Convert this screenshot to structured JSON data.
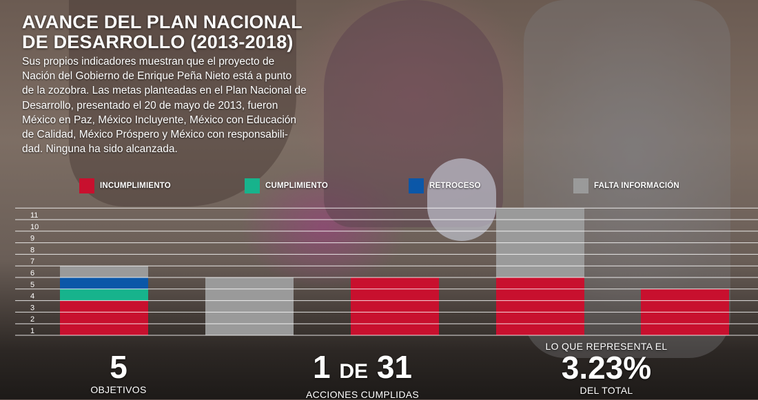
{
  "header": {
    "title_line1": "AVANCE DEL PLAN NACIONAL",
    "title_line2": "DE DESARROLLO (2013-2018)"
  },
  "intro_lines": [
    "Sus propios indicadores muestran que el proyecto de",
    "Nación del Gobierno de Enrique Peña Nieto está a punto",
    "de la zozobra. Las metas planteadas en el Plan Nacional de",
    "Desarrollo, presentado el 20 de mayo de 2013, fueron",
    "México en Paz, México Incluyente, México con Educación",
    "de Calidad, México Próspero y México con responsabili-",
    "dad. Ninguna ha sido alcanzada."
  ],
  "colors": {
    "incumplimiento": "#c8102e",
    "cumplimiento": "#17b38c",
    "retroceso": "#0b57a8",
    "falta_informacion": "#9a9a9a",
    "gridline": "#ffffff"
  },
  "chart_data": {
    "type": "bar",
    "stacked": true,
    "title": "",
    "xlabel": "",
    "ylabel": "",
    "ylim": [
      0,
      11
    ],
    "yticks": [
      1,
      2,
      3,
      4,
      5,
      6,
      7,
      8,
      9,
      10,
      11
    ],
    "grid": true,
    "legend_position": "top",
    "categories": [
      "",
      "",
      "",
      "",
      ""
    ],
    "series": [
      {
        "name": "INCUMPLIMIENTO",
        "color": "#c8102e",
        "values": [
          3,
          0,
          5,
          5,
          4
        ]
      },
      {
        "name": "CUMPLIMIENTO",
        "color": "#17b38c",
        "values": [
          1,
          0,
          0,
          0,
          0
        ]
      },
      {
        "name": "RETROCESO",
        "color": "#0b57a8",
        "values": [
          1,
          0,
          0,
          0,
          0
        ]
      },
      {
        "name": "FALTA INFORMACIÓN",
        "color": "#9a9a9a",
        "values": [
          1,
          5,
          0,
          6,
          0
        ]
      }
    ]
  },
  "stats": {
    "objetivos": {
      "number": "5",
      "label": "OBJETIVOS"
    },
    "acciones": {
      "number_a": "1",
      "connector": "DE",
      "number_b": "31",
      "label": "ACCIONES CUMPLIDAS"
    },
    "porcentaje": {
      "prefix": "LO QUE REPRESENTA EL",
      "number": "3.23%",
      "label": "DEL TOTAL"
    }
  }
}
